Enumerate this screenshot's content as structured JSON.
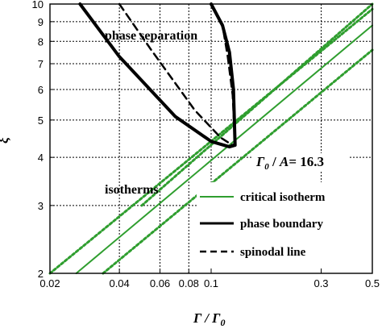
{
  "chart_data": {
    "type": "line",
    "xlabel": "Γ / Γ0",
    "ylabel": "ξ",
    "xscale": "log",
    "yscale": "log",
    "xlim": [
      0.02,
      0.5
    ],
    "ylim": [
      2,
      10
    ],
    "x_tick_labels": [
      "0.02",
      "0.04",
      "0.06",
      "0.08",
      "0.1",
      "0.3",
      "0.5"
    ],
    "x_tick_values": [
      0.02,
      0.04,
      0.06,
      0.08,
      0.1,
      0.3,
      0.5
    ],
    "y_tick_labels": [
      "2",
      "3",
      "4",
      "5",
      "6",
      "7",
      "8",
      "9",
      "10"
    ],
    "y_tick_values": [
      2,
      3,
      4,
      5,
      6,
      7,
      8,
      9,
      10
    ],
    "grid": true,
    "annotations": {
      "phase_separation": "phase separation",
      "isotherms": "isotherms",
      "ratio_label": "Γ0 / A= 16.3"
    },
    "legend": {
      "placement": "bottom-right",
      "entries": [
        {
          "label": "critical isotherm",
          "style": "solid",
          "color": "#2f9e2f"
        },
        {
          "label": "phase boundary",
          "style": "solid-thick",
          "color": "#000000"
        },
        {
          "label": "spinodal line",
          "style": "dashed",
          "color": "#000000"
        }
      ]
    },
    "series": [
      {
        "name": "critical isotherm",
        "style": "solid",
        "color": "#2f9e2f",
        "x": [
          0.026,
          0.5
        ],
        "y": [
          2.0,
          8.8
        ]
      },
      {
        "style": "dotted",
        "color": "#2f9e2f",
        "x": [
          0.02,
          0.5
        ],
        "y": [
          2.0,
          9.7
        ]
      },
      {
        "style": "dotted",
        "color": "#2f9e2f",
        "x": [
          0.034,
          0.5
        ],
        "y": [
          2.0,
          7.6
        ]
      },
      {
        "style": "dotted",
        "color": "#2f9e2f",
        "x": [
          0.05,
          0.5
        ],
        "y": [
          3.0,
          10.0
        ]
      },
      {
        "name": "phase boundary",
        "style": "solid-thick",
        "color": "#000000",
        "x": [
          0.027,
          0.04,
          0.07,
          0.1,
          0.12,
          0.127,
          0.125,
          0.12,
          0.112,
          0.1
        ],
        "y": [
          10.0,
          7.3,
          5.1,
          4.4,
          4.26,
          4.3,
          6.0,
          7.5,
          8.8,
          10.0
        ]
      },
      {
        "name": "spinodal line",
        "style": "dashed",
        "color": "#000000",
        "x": [
          0.04,
          0.055,
          0.085,
          0.11,
          0.124,
          0.127,
          0.124,
          0.118,
          0.112,
          0.1
        ],
        "y": [
          10.0,
          7.6,
          5.3,
          4.5,
          4.3,
          4.35,
          5.8,
          7.3,
          8.8,
          10.0
        ]
      }
    ],
    "critical_point": {
      "x": 0.127,
      "y": 4.28
    }
  },
  "colors": {
    "green": "#2f9e2f",
    "black": "#000000",
    "grid": "#000000"
  }
}
